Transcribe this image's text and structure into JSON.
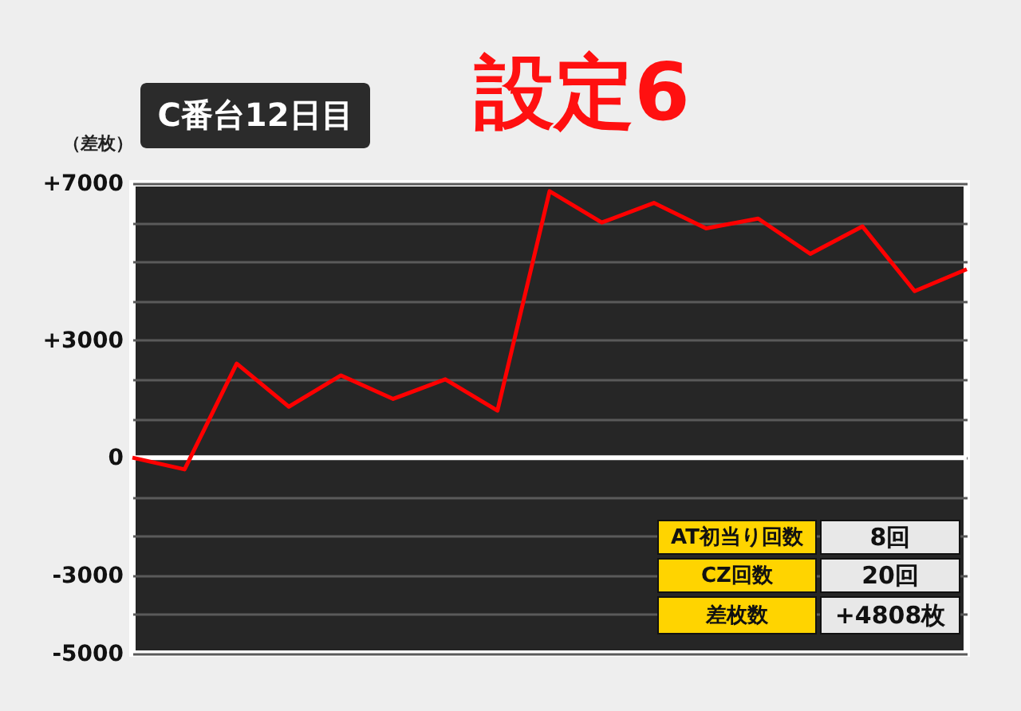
{
  "chart_data": {
    "type": "line",
    "title": "設定6",
    "subtitle": "C番台12日目",
    "ylabel": "（差枚）",
    "categories": [
      null,
      null,
      null,
      null,
      null,
      null,
      null,
      null,
      null,
      null,
      null,
      null,
      null,
      null,
      null,
      null,
      null
    ],
    "series": [
      {
        "color": "#ff0000",
        "values": [
          0,
          -300,
          2400,
          1300,
          2100,
          1500,
          2000,
          1200,
          6800,
          6000,
          6500,
          5850,
          6100,
          5200,
          5900,
          4250,
          4808
        ]
      }
    ],
    "ylim": [
      -5000,
      7000
    ],
    "yticks": [
      {
        "value": 7000,
        "label": "+7000"
      },
      {
        "value": 6000,
        "label": null
      },
      {
        "value": 5000,
        "label": null
      },
      {
        "value": 4000,
        "label": null
      },
      {
        "value": 3000,
        "label": "+3000"
      },
      {
        "value": 2000,
        "label": null
      },
      {
        "value": 1000,
        "label": null
      },
      0,
      {
        "value": -1000,
        "label": null
      },
      {
        "value": -2000,
        "label": null
      },
      -3000,
      {
        "value": -4000,
        "label": null
      },
      -5000
    ],
    "grid": "y",
    "tick_labels": "y",
    "ref_lines": [
      {
        "axis": "y",
        "value": 0,
        "label": null,
        "color": "#ffffff"
      }
    ],
    "annotations": [
      "AT初当り回数",
      "8回",
      "CZ回数",
      "20回",
      "差枚数",
      "+4808枚"
    ]
  }
}
